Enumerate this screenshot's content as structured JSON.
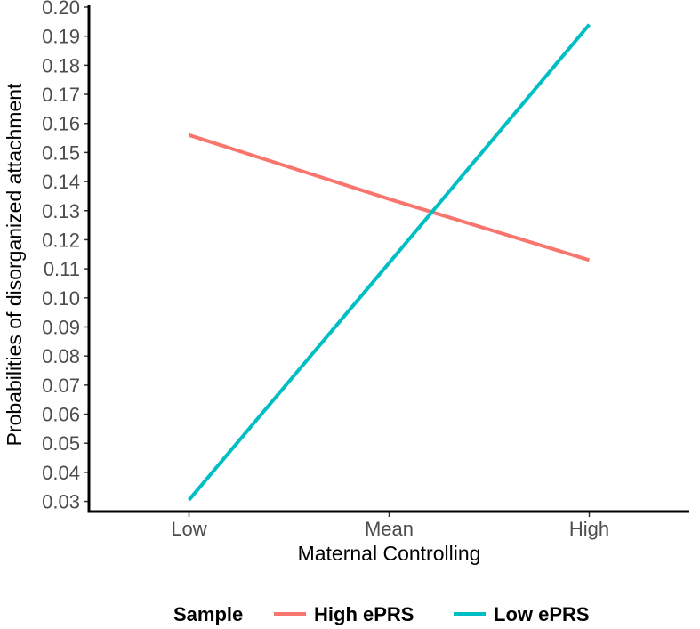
{
  "chart_data": {
    "type": "line",
    "title": "",
    "xlabel": "Maternal Controlling",
    "ylabel": "Probabilities of disorganized attachment",
    "categories": [
      "Low",
      "Mean",
      "High"
    ],
    "ylim": [
      0.0265,
      0.2
    ],
    "yticks": [
      "0.03",
      "0.04",
      "0.05",
      "0.06",
      "0.07",
      "0.08",
      "0.09",
      "0.10",
      "0.11",
      "0.12",
      "0.13",
      "0.14",
      "0.15",
      "0.16",
      "0.17",
      "0.18",
      "0.19",
      "0.20"
    ],
    "grid": false,
    "legend": {
      "title": "Sample",
      "position": "bottom"
    },
    "series": [
      {
        "name": "High ePRS",
        "color": "#F8766D",
        "values": [
          0.156,
          0.134,
          0.113
        ]
      },
      {
        "name": "Low ePRS",
        "color": "#00BFC4",
        "values": [
          0.0305,
          0.112,
          0.194
        ]
      }
    ]
  }
}
